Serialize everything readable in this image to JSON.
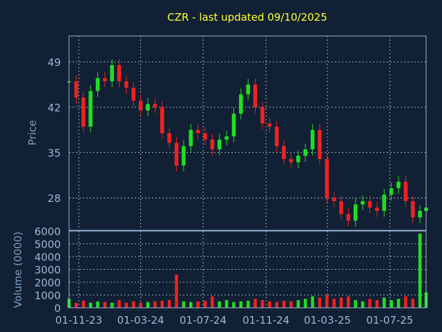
{
  "colors": {
    "background": "#112034",
    "title": "#ffff33",
    "tick_text": "#9cb6d4",
    "axis_label": "#7f9abb",
    "up": "#22dd22",
    "down": "#ee2222",
    "frame": "#9cb6d4",
    "grid": "#c8d2dc"
  },
  "chart_data": [
    {
      "type": "candlestick",
      "title": "CZR - last updated 09/10/2025",
      "ylabel": "Price",
      "ylim": [
        23,
        53
      ],
      "yticks": [
        {
          "value": 28,
          "label": "28"
        },
        {
          "value": 35,
          "label": "35"
        },
        {
          "value": 42,
          "label": "42"
        },
        {
          "value": 49,
          "label": "49"
        }
      ],
      "grid": true,
      "x": [
        "2023-10-13",
        "2023-10-27",
        "2023-11-10",
        "2023-11-24",
        "2023-12-08",
        "2023-12-22",
        "2024-01-05",
        "2024-01-19",
        "2024-02-02",
        "2024-02-16",
        "2024-03-01",
        "2024-03-15",
        "2024-03-29",
        "2024-04-12",
        "2024-04-26",
        "2024-05-10",
        "2024-05-24",
        "2024-06-07",
        "2024-06-21",
        "2024-07-05",
        "2024-07-19",
        "2024-08-02",
        "2024-08-16",
        "2024-08-30",
        "2024-09-13",
        "2024-09-27",
        "2024-10-11",
        "2024-10-25",
        "2024-11-08",
        "2024-11-22",
        "2024-12-06",
        "2024-12-20",
        "2025-01-03",
        "2025-01-17",
        "2025-01-31",
        "2025-02-14",
        "2025-02-28",
        "2025-03-14",
        "2025-03-28",
        "2025-04-11",
        "2025-04-25",
        "2025-05-09",
        "2025-05-23",
        "2025-06-06",
        "2025-06-20",
        "2025-07-04",
        "2025-07-18",
        "2025-08-01",
        "2025-08-15",
        "2025-08-29",
        "2025-09-10"
      ],
      "close": [
        46.0,
        43.5,
        39.0,
        44.5,
        46.5,
        46.0,
        48.5,
        46.0,
        45.0,
        43.0,
        41.5,
        42.5,
        42.0,
        38.0,
        36.5,
        33.0,
        36.0,
        38.5,
        38.0,
        37.0,
        35.5,
        37.0,
        37.5,
        41.0,
        44.0,
        45.5,
        42.0,
        39.5,
        39.0,
        36.0,
        34.0,
        33.5,
        34.5,
        35.5,
        38.5,
        34.0,
        28.0,
        27.5,
        25.5,
        24.5,
        27.0,
        27.5,
        26.5,
        26.0,
        28.5,
        29.5,
        30.5,
        27.5,
        25.0,
        26.0,
        26.5
      ],
      "x_ticks": [
        "01-11-23",
        "01-03-24",
        "01-07-24",
        "01-11-24",
        "01-03-25",
        "01-07-25"
      ],
      "x_tick_dates": [
        "2023-11-01",
        "2024-03-01",
        "2024-07-01",
        "2024-11-01",
        "2025-03-01",
        "2025-07-01"
      ]
    },
    {
      "type": "bar",
      "ylabel": "Volume (0000)",
      "ylim": [
        0,
        6000
      ],
      "yticks": [
        {
          "value": 0,
          "label": "0"
        },
        {
          "value": 1000,
          "label": "1000"
        },
        {
          "value": 2000,
          "label": "2000"
        },
        {
          "value": 3000,
          "label": "3000"
        },
        {
          "value": 4000,
          "label": "4000"
        },
        {
          "value": 5000,
          "label": "5000"
        },
        {
          "value": 6000,
          "label": "6000"
        }
      ],
      "grid": true,
      "x": [
        "2023-10-13",
        "2023-10-27",
        "2023-11-10",
        "2023-11-24",
        "2023-12-08",
        "2023-12-22",
        "2024-01-05",
        "2024-01-19",
        "2024-02-02",
        "2024-02-16",
        "2024-03-01",
        "2024-03-15",
        "2024-03-29",
        "2024-04-12",
        "2024-04-26",
        "2024-05-10",
        "2024-05-24",
        "2024-06-07",
        "2024-06-21",
        "2024-07-05",
        "2024-07-19",
        "2024-08-02",
        "2024-08-16",
        "2024-08-30",
        "2024-09-13",
        "2024-09-27",
        "2024-10-11",
        "2024-10-25",
        "2024-11-08",
        "2024-11-22",
        "2024-12-06",
        "2024-12-20",
        "2025-01-03",
        "2025-01-17",
        "2025-01-31",
        "2025-02-14",
        "2025-02-28",
        "2025-03-14",
        "2025-03-28",
        "2025-04-11",
        "2025-04-25",
        "2025-05-09",
        "2025-05-23",
        "2025-06-06",
        "2025-06-20",
        "2025-07-04",
        "2025-07-18",
        "2025-08-01",
        "2025-08-15",
        "2025-08-29",
        "2025-09-10"
      ],
      "values": [
        700,
        400,
        550,
        400,
        500,
        450,
        400,
        600,
        400,
        500,
        400,
        450,
        500,
        550,
        600,
        2600,
        500,
        450,
        500,
        550,
        900,
        500,
        600,
        450,
        500,
        550,
        700,
        600,
        500,
        450,
        550,
        500,
        600,
        700,
        900,
        800,
        1000,
        700,
        800,
        900,
        600,
        500,
        700,
        600,
        800,
        600,
        700,
        900,
        700,
        5800,
        1200
      ]
    }
  ]
}
